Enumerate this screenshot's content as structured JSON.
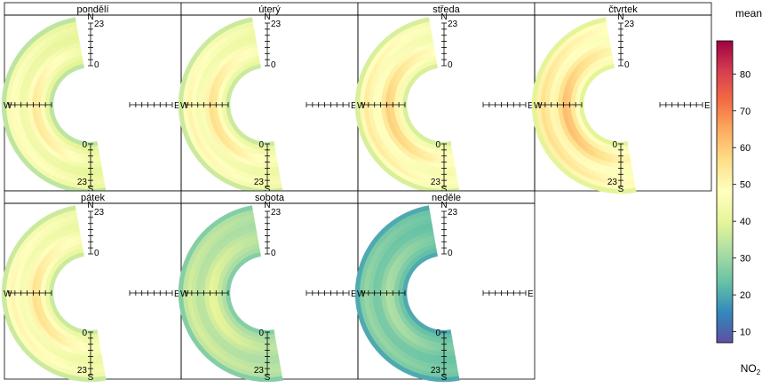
{
  "chart_data": {
    "type": "heatmap",
    "subtype": "polar-annulus",
    "title": "",
    "colorbar": {
      "title": "mean",
      "variable": "NO",
      "variable_sub": "2",
      "min": 7,
      "max": 89,
      "ticks": [
        10,
        20,
        30,
        40,
        50,
        60,
        70,
        80
      ],
      "palette": [
        "#5e4fa2",
        "#3288bd",
        "#66c2a5",
        "#abdda4",
        "#e6f598",
        "#ffffbf",
        "#fee08b",
        "#fdae61",
        "#f46d43",
        "#d53e4f",
        "#9e0142"
      ]
    },
    "radial_axis": {
      "label_start": "0",
      "label_end": "23",
      "ticks": 8
    },
    "directions": {
      "north": "N",
      "south": "S",
      "west": "W",
      "east": "E"
    },
    "panels": [
      {
        "name": "pondělí",
        "peak": 72,
        "outer_peak": 76,
        "base": 38
      },
      {
        "name": "úterý",
        "peak": 74,
        "outer_peak": 77,
        "base": 40
      },
      {
        "name": "středa",
        "peak": 78,
        "outer_peak": 80,
        "base": 42
      },
      {
        "name": "čtvrtek",
        "peak": 82,
        "outer_peak": 84,
        "base": 44
      },
      {
        "name": "pátek",
        "peak": 74,
        "outer_peak": 76,
        "base": 40
      },
      {
        "name": "sobota",
        "peak": 52,
        "outer_peak": 56,
        "base": 30
      },
      {
        "name": "neděle",
        "peak": 44,
        "outer_peak": 48,
        "base": 22
      }
    ]
  }
}
